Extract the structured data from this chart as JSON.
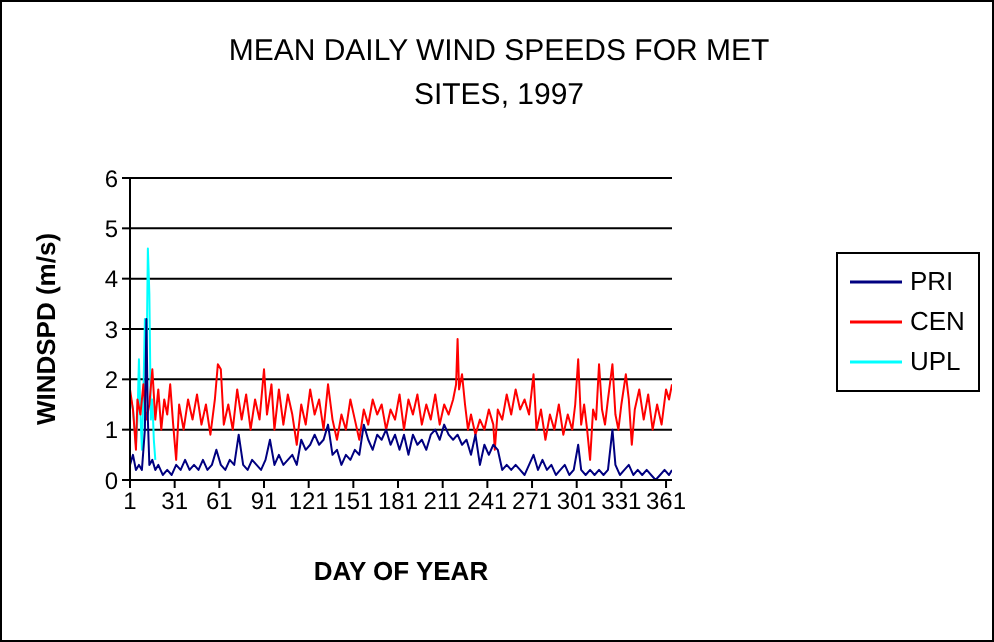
{
  "chart_data": {
    "type": "line",
    "title": "MEAN DAILY WIND SPEEDS FOR MET SITES, 1997",
    "xlabel": "DAY OF YEAR",
    "ylabel": "WINDSPD (m/s)",
    "xlim": [
      1,
      365
    ],
    "xticks": [
      1,
      31,
      61,
      91,
      121,
      151,
      181,
      211,
      241,
      271,
      301,
      331,
      361
    ],
    "ylim": [
      0,
      6
    ],
    "yticks": [
      0,
      1,
      2,
      3,
      4,
      5,
      6
    ],
    "grid": "y",
    "legend": "right",
    "series": [
      {
        "name": "PRI",
        "color": "#000080",
        "x": [
          1,
          3,
          5,
          7,
          9,
          11,
          12,
          13,
          14,
          16,
          18,
          20,
          23,
          26,
          29,
          32,
          35,
          38,
          41,
          44,
          47,
          50,
          53,
          56,
          59,
          62,
          65,
          68,
          71,
          74,
          77,
          80,
          83,
          86,
          89,
          92,
          95,
          98,
          101,
          104,
          107,
          110,
          113,
          116,
          119,
          122,
          125,
          128,
          131,
          134,
          137,
          140,
          143,
          146,
          149,
          152,
          155,
          158,
          161,
          164,
          167,
          170,
          173,
          176,
          179,
          182,
          185,
          188,
          191,
          194,
          197,
          200,
          203,
          206,
          209,
          212,
          215,
          218,
          221,
          224,
          227,
          230,
          233,
          236,
          239,
          242,
          245,
          248,
          251,
          254,
          257,
          260,
          263,
          266,
          269,
          272,
          275,
          278,
          281,
          284,
          287,
          290,
          293,
          296,
          299,
          302,
          304,
          307,
          310,
          313,
          316,
          319,
          322,
          325,
          327,
          330,
          333,
          336,
          339,
          342,
          345,
          348,
          351,
          354,
          357,
          360,
          363,
          365
        ],
        "values": [
          0.3,
          0.5,
          0.2,
          0.3,
          0.2,
          1.0,
          3.2,
          1.2,
          0.3,
          0.4,
          0.2,
          0.3,
          0.1,
          0.2,
          0.1,
          0.3,
          0.2,
          0.4,
          0.2,
          0.3,
          0.2,
          0.4,
          0.2,
          0.3,
          0.6,
          0.3,
          0.2,
          0.4,
          0.3,
          0.9,
          0.3,
          0.2,
          0.4,
          0.3,
          0.2,
          0.4,
          0.8,
          0.3,
          0.5,
          0.3,
          0.4,
          0.5,
          0.3,
          0.8,
          0.6,
          0.7,
          0.9,
          0.7,
          0.8,
          1.1,
          0.5,
          0.6,
          0.3,
          0.5,
          0.4,
          0.6,
          0.5,
          1.1,
          0.8,
          0.6,
          0.9,
          0.8,
          1.0,
          0.7,
          0.9,
          0.6,
          0.9,
          0.5,
          0.9,
          0.7,
          0.8,
          0.6,
          0.9,
          1.0,
          0.8,
          1.1,
          0.9,
          0.8,
          0.9,
          0.7,
          0.8,
          0.5,
          0.9,
          0.3,
          0.7,
          0.5,
          0.7,
          0.6,
          0.2,
          0.3,
          0.2,
          0.3,
          0.2,
          0.1,
          0.3,
          0.5,
          0.2,
          0.4,
          0.2,
          0.3,
          0.1,
          0.2,
          0.3,
          0.1,
          0.2,
          0.7,
          0.2,
          0.1,
          0.2,
          0.1,
          0.2,
          0.1,
          0.2,
          1.0,
          0.3,
          0.1,
          0.2,
          0.3,
          0.1,
          0.2,
          0.1,
          0.2,
          0.1,
          0.0,
          0.1,
          0.2,
          0.1,
          0.2
        ]
      },
      {
        "name": "CEN",
        "color": "#ff0000",
        "x": [
          1,
          3,
          5,
          6,
          8,
          10,
          12,
          14,
          16,
          18,
          20,
          22,
          24,
          26,
          28,
          30,
          32,
          34,
          37,
          40,
          43,
          46,
          49,
          52,
          55,
          58,
          60,
          62,
          64,
          67,
          70,
          73,
          76,
          79,
          82,
          85,
          88,
          91,
          93,
          96,
          98,
          101,
          104,
          107,
          110,
          113,
          116,
          119,
          122,
          125,
          128,
          131,
          134,
          137,
          140,
          143,
          146,
          149,
          152,
          155,
          158,
          161,
          164,
          167,
          170,
          173,
          176,
          179,
          182,
          185,
          188,
          191,
          194,
          197,
          200,
          203,
          206,
          209,
          212,
          215,
          218,
          220,
          221,
          222,
          224,
          226,
          228,
          230,
          233,
          236,
          239,
          242,
          245,
          246,
          248,
          251,
          254,
          257,
          260,
          263,
          266,
          269,
          272,
          274,
          277,
          280,
          283,
          286,
          289,
          292,
          295,
          298,
          300,
          302,
          304,
          306,
          308,
          310,
          312,
          314,
          316,
          318,
          320,
          322,
          325,
          327,
          329,
          331,
          334,
          336,
          338,
          340,
          343,
          346,
          349,
          352,
          355,
          358,
          361,
          363,
          365
        ],
        "values": [
          1.8,
          1.4,
          0.6,
          1.6,
          1.3,
          1.9,
          1.2,
          1.5,
          2.2,
          1.2,
          1.8,
          1.0,
          1.6,
          1.3,
          1.9,
          1.1,
          0.4,
          1.5,
          1.0,
          1.6,
          1.2,
          1.7,
          1.1,
          1.5,
          0.9,
          1.6,
          2.3,
          2.2,
          1.1,
          1.5,
          1.0,
          1.8,
          1.2,
          1.7,
          1.0,
          1.6,
          1.2,
          2.2,
          1.3,
          1.9,
          1.0,
          1.8,
          1.1,
          1.7,
          1.3,
          0.7,
          1.5,
          1.1,
          1.8,
          1.3,
          1.6,
          1.0,
          1.9,
          1.2,
          0.8,
          1.3,
          1.0,
          1.6,
          1.2,
          0.8,
          1.4,
          1.1,
          1.6,
          1.3,
          1.5,
          1.0,
          1.4,
          1.2,
          1.7,
          1.0,
          1.6,
          1.3,
          1.7,
          1.1,
          1.5,
          1.2,
          1.7,
          1.1,
          1.5,
          1.3,
          1.6,
          1.9,
          2.8,
          1.8,
          2.1,
          1.5,
          1.0,
          1.3,
          0.9,
          1.2,
          1.0,
          1.4,
          1.1,
          0.6,
          1.4,
          1.2,
          1.7,
          1.3,
          1.8,
          1.4,
          1.6,
          1.3,
          2.1,
          1.0,
          1.4,
          0.8,
          1.3,
          1.0,
          1.5,
          0.9,
          1.3,
          1.0,
          1.5,
          2.4,
          1.1,
          1.5,
          1.0,
          0.4,
          1.4,
          1.2,
          2.3,
          1.4,
          1.1,
          1.6,
          2.3,
          1.3,
          1.0,
          1.5,
          2.1,
          1.6,
          0.7,
          1.4,
          1.8,
          1.2,
          1.7,
          1.0,
          1.5,
          1.1,
          1.8,
          1.6,
          1.9
        ]
      },
      {
        "name": "UPL",
        "color": "#00ffff",
        "x": [
          1,
          3,
          5,
          6,
          7,
          8,
          9,
          10,
          11,
          12,
          13,
          14,
          15,
          16,
          17,
          18
        ],
        "values": [
          1.7,
          1.4,
          0.7,
          1.2,
          2.4,
          1.3,
          0.6,
          1.7,
          3.2,
          2.0,
          4.6,
          3.7,
          1.2,
          1.6,
          0.8,
          0.4
        ]
      }
    ]
  }
}
